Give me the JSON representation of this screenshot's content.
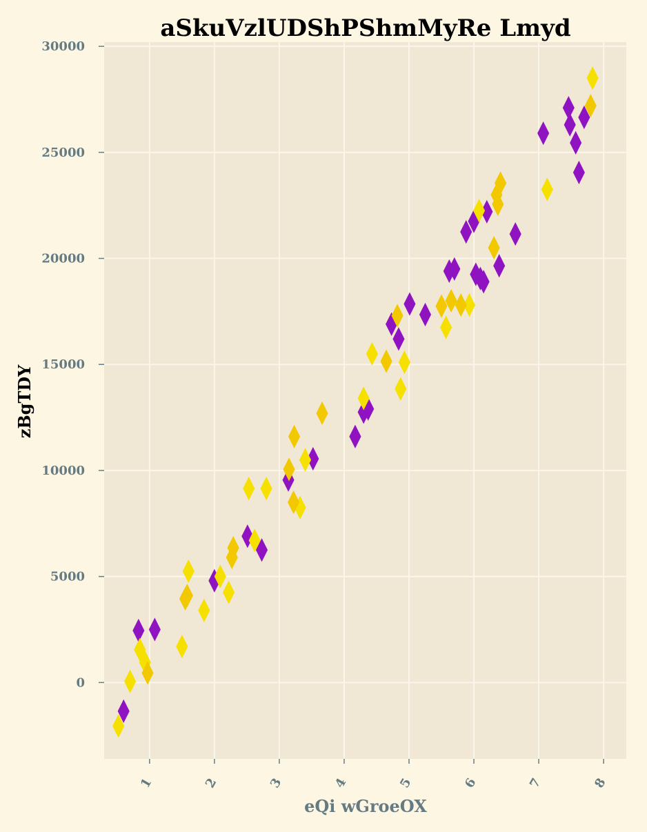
{
  "chart_data": {
    "type": "scatter",
    "title": "aSkuVzlUDShPShmMyRe Lmyd",
    "xlabel": "eQi wGroeOX",
    "ylabel": "zBgTDY",
    "xlim": [
      0.3,
      8.35
    ],
    "ylim": [
      -3600,
      30200
    ],
    "xticks": [
      1,
      2,
      3,
      4,
      5,
      6,
      7,
      8
    ],
    "yticks": [
      0,
      5000,
      10000,
      15000,
      20000,
      25000,
      30000
    ],
    "grid": true,
    "legend": "none",
    "colors": {
      "background": "#fdf6e3",
      "plot_area": "#f0e8d5",
      "grid": "#fbf6ea",
      "purple": "#9013c1",
      "yellow": "#f5e000",
      "gold": "#f2c800"
    },
    "marker": "thin-diamond",
    "series": [
      {
        "color": "#9013c1",
        "points": [
          [
            0.6,
            -1350
          ],
          [
            0.83,
            2450
          ],
          [
            1.08,
            2500
          ],
          [
            2.0,
            4800
          ],
          [
            2.51,
            6900
          ],
          [
            2.73,
            6250
          ],
          [
            3.14,
            9550
          ],
          [
            3.52,
            10550
          ],
          [
            4.17,
            11600
          ],
          [
            4.3,
            12750
          ],
          [
            4.37,
            12900
          ],
          [
            4.73,
            16900
          ],
          [
            4.84,
            16200
          ],
          [
            5.01,
            17850
          ],
          [
            5.25,
            17350
          ],
          [
            5.62,
            19400
          ],
          [
            5.7,
            19500
          ],
          [
            5.88,
            21250
          ],
          [
            6.0,
            21750
          ],
          [
            6.03,
            19250
          ],
          [
            6.1,
            19050
          ],
          [
            6.15,
            18900
          ],
          [
            6.2,
            22200
          ],
          [
            6.39,
            19650
          ],
          [
            6.64,
            21150
          ],
          [
            7.07,
            25900
          ],
          [
            7.46,
            27100
          ],
          [
            7.48,
            26300
          ],
          [
            7.57,
            25450
          ],
          [
            7.62,
            24050
          ],
          [
            7.7,
            26650
          ]
        ]
      },
      {
        "color": "#f5e000",
        "points": [
          [
            0.52,
            -2050
          ],
          [
            0.7,
            50
          ],
          [
            0.85,
            1550
          ],
          [
            0.93,
            950
          ],
          [
            1.5,
            1700
          ],
          [
            1.6,
            5250
          ],
          [
            1.84,
            3400
          ],
          [
            2.09,
            5000
          ],
          [
            2.22,
            4250
          ],
          [
            2.53,
            9150
          ],
          [
            2.62,
            6700
          ],
          [
            2.8,
            9150
          ],
          [
            3.32,
            8250
          ],
          [
            3.4,
            10500
          ],
          [
            4.3,
            13400
          ],
          [
            4.43,
            15500
          ],
          [
            4.87,
            13850
          ],
          [
            4.93,
            15100
          ],
          [
            5.57,
            16750
          ],
          [
            5.93,
            17800
          ],
          [
            6.08,
            22250
          ],
          [
            7.13,
            23250
          ],
          [
            7.83,
            28500
          ]
        ]
      },
      {
        "color": "#f2c800",
        "points": [
          [
            0.97,
            450
          ],
          [
            1.55,
            3950
          ],
          [
            1.58,
            4100
          ],
          [
            2.27,
            5900
          ],
          [
            2.29,
            6350
          ],
          [
            3.15,
            10050
          ],
          [
            3.22,
            8500
          ],
          [
            3.23,
            11600
          ],
          [
            3.66,
            12700
          ],
          [
            4.65,
            15150
          ],
          [
            4.82,
            17300
          ],
          [
            5.5,
            17750
          ],
          [
            5.65,
            18000
          ],
          [
            5.8,
            17800
          ],
          [
            6.31,
            20500
          ],
          [
            6.35,
            23000
          ],
          [
            6.37,
            22550
          ],
          [
            6.41,
            23550
          ],
          [
            7.8,
            27200
          ]
        ]
      }
    ]
  }
}
